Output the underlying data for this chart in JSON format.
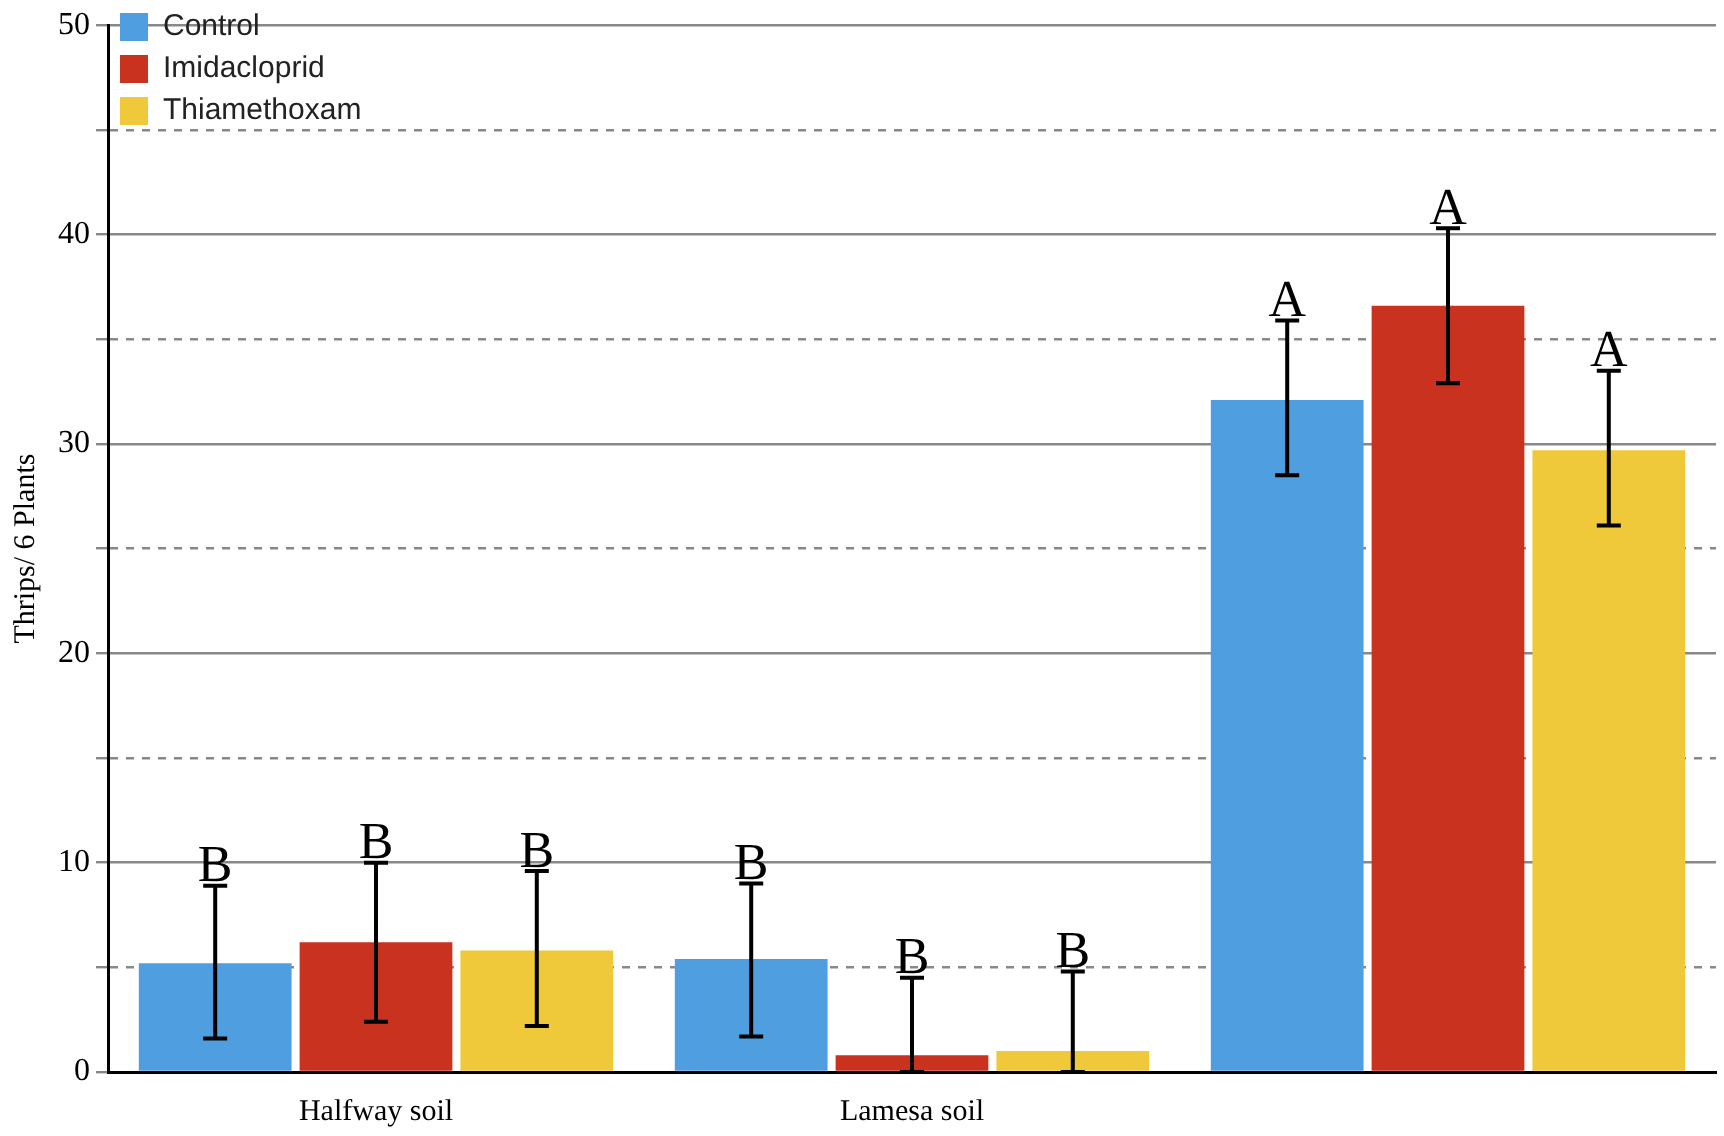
{
  "chart_data": {
    "type": "bar",
    "ylabel": "Thrips/ 6 Plants",
    "categories": [
      "Halfway soil",
      "Lamesa soil",
      null
    ],
    "series": [
      {
        "name": "Control",
        "color": "#4f9fe0",
        "values": [
          5.2,
          5.4,
          32.1
        ],
        "errors": [
          [
            1.6,
            8.9
          ],
          [
            1.7,
            9.0
          ],
          [
            28.5,
            35.9
          ]
        ],
        "value_labels": [
          "B",
          "B",
          "A"
        ]
      },
      {
        "name": "Imidacloprid",
        "color": "#c8321e",
        "values": [
          6.2,
          0.8,
          36.6
        ],
        "errors": [
          [
            2.4,
            10.0
          ],
          [
            0,
            4.5
          ],
          [
            32.9,
            40.3
          ]
        ],
        "value_labels": [
          "B",
          "B",
          "A"
        ]
      },
      {
        "name": "Thiamethoxam",
        "color": "#f0c93a",
        "values": [
          5.8,
          1.0,
          29.7
        ],
        "errors": [
          [
            2.2,
            9.6
          ],
          [
            0,
            4.8
          ],
          [
            26.1,
            33.5
          ]
        ],
        "value_labels": [
          "B",
          "B",
          "A"
        ]
      }
    ],
    "ylim": [
      0,
      50
    ],
    "yticks": [
      0,
      {
        "value": 5,
        "label": null
      },
      10,
      {
        "value": 15,
        "label": null
      },
      20,
      {
        "value": 25,
        "label": null
      },
      30,
      {
        "value": 35,
        "label": null
      },
      40,
      {
        "value": 45,
        "label": null
      },
      50
    ],
    "grid": "y",
    "legend": "top left"
  }
}
